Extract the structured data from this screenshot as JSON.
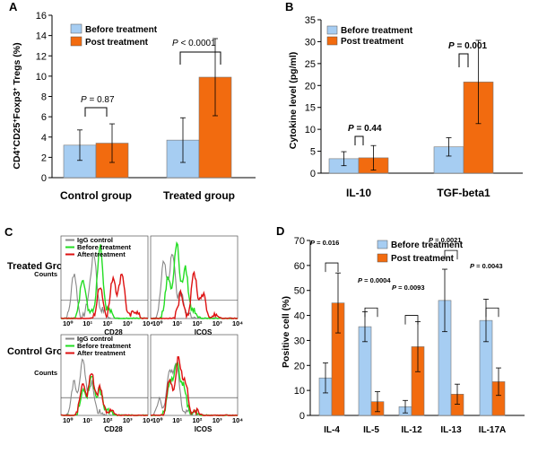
{
  "figure": {
    "colors": {
      "before": "#a6cdf2",
      "after": "#f26b0f",
      "igg": "#888888",
      "before_line": "#22dd22",
      "after_line": "#dd1111"
    },
    "panel_a": {
      "label": "A",
      "ylabel": "CD4+CD25+Foxp3+ Tregs (%)",
      "legend": [
        "Before treatment",
        "Post treatment"
      ],
      "pvalues": [
        "P = 0.87",
        "P < 0.0001"
      ]
    },
    "panel_b": {
      "label": "B",
      "ylabel": "Cytokine level (pg/ml)",
      "legend": [
        "Before treatment",
        "Post treatment"
      ],
      "pvalues": [
        "P = 0.44",
        "P = 0.001"
      ]
    },
    "panel_c": {
      "label": "C",
      "groups": [
        "Treated Group",
        "Control Group"
      ],
      "legend": [
        "IgG control",
        "Before treatment",
        "After treatment"
      ],
      "xlabels": [
        "CD28",
        "ICOS"
      ],
      "ylabel": "Counts",
      "decades": [
        "10⁰",
        "10¹",
        "10²",
        "10³",
        "10⁴"
      ]
    },
    "panel_d": {
      "label": "D",
      "ylabel": "Positive cell (%)",
      "legend": [
        "Before treatment",
        "Post treatment"
      ],
      "pvalues": [
        "P = 0.016",
        "P = 0.0004",
        "P = 0.0093",
        "P = 0.0021",
        "P = 0.0043"
      ]
    }
  },
  "chart_data": [
    {
      "panel": "A",
      "type": "bar",
      "categories": [
        "Control group",
        "Treated group"
      ],
      "series": [
        {
          "name": "Before treatment",
          "values": [
            3.2,
            3.7
          ],
          "errors": [
            1.5,
            2.2
          ]
        },
        {
          "name": "Post treatment",
          "values": [
            3.4,
            9.9
          ],
          "errors": [
            1.9,
            3.8
          ]
        }
      ],
      "ylim": [
        0,
        16
      ],
      "yticks": [
        0,
        2,
        4,
        6,
        8,
        10,
        12,
        14,
        16
      ],
      "xlabel": "",
      "ylabel": "CD4+CD25+Foxp3+ Tregs (%)"
    },
    {
      "panel": "B",
      "type": "bar",
      "categories": [
        "IL-10",
        "TGF-beta1"
      ],
      "series": [
        {
          "name": "Before treatment",
          "values": [
            3.3,
            6.0
          ],
          "errors": [
            1.6,
            2.1
          ]
        },
        {
          "name": "Post treatment",
          "values": [
            3.5,
            20.8
          ],
          "errors": [
            2.8,
            9.5
          ]
        }
      ],
      "ylim": [
        0,
        35
      ],
      "yticks": [
        0,
        5,
        10,
        15,
        20,
        25,
        30,
        35
      ],
      "xlabel": "",
      "ylabel": "Cytokine level (pg/ml)"
    },
    {
      "panel": "D",
      "type": "bar",
      "categories": [
        "IL-4",
        "IL-5",
        "IL-12",
        "IL-13",
        "IL-17A"
      ],
      "series": [
        {
          "name": "Before treatment",
          "values": [
            15,
            35.5,
            3.5,
            46,
            38
          ],
          "errors": [
            6,
            6,
            2.5,
            12.5,
            8.5
          ]
        },
        {
          "name": "Post treatment",
          "values": [
            45,
            5.5,
            27.5,
            8.5,
            13.5
          ],
          "errors": [
            12,
            4,
            10,
            4,
            5.5
          ]
        }
      ],
      "ylim": [
        0,
        70
      ],
      "yticks": [
        0,
        10,
        20,
        30,
        40,
        50,
        60,
        70
      ],
      "xlabel": "",
      "ylabel": "Positive cell (%)"
    }
  ]
}
